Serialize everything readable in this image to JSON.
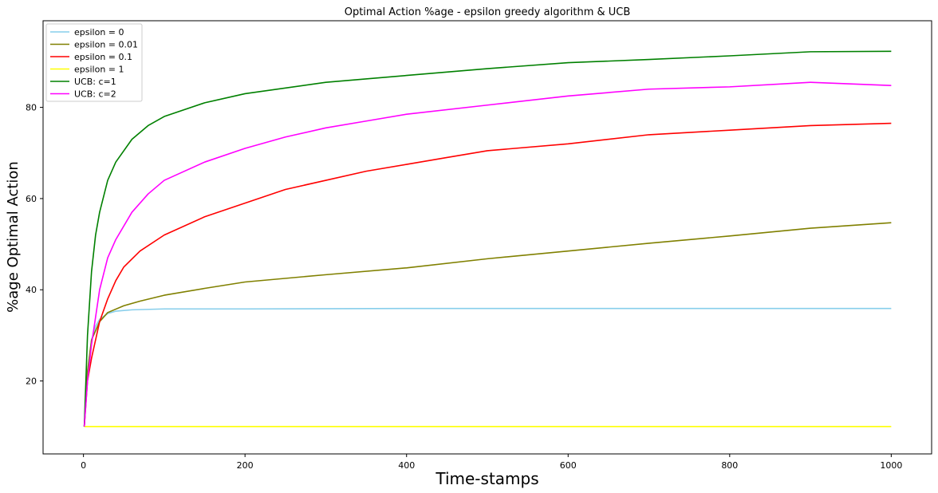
{
  "chart_data": {
    "type": "line",
    "title": "Optimal Action %age - epsilon greedy algorithm & UCB",
    "xlabel": "Time-stamps",
    "ylabel": "%age Optimal Action",
    "xlim": [
      -50,
      1050
    ],
    "ylim": [
      4,
      99
    ],
    "xticks": [
      0,
      200,
      400,
      600,
      800,
      1000
    ],
    "yticks": [
      20,
      40,
      60,
      80
    ],
    "grid": false,
    "legend_position": "top-left",
    "series": [
      {
        "name": "epsilon = 0",
        "color": "#87ceeb",
        "x": [
          1,
          5,
          10,
          15,
          20,
          30,
          40,
          60,
          100,
          200,
          400,
          600,
          800,
          1000
        ],
        "y": [
          10,
          22,
          29,
          32,
          33.5,
          34.8,
          35.3,
          35.6,
          35.8,
          35.8,
          35.9,
          35.9,
          35.9,
          35.9
        ]
      },
      {
        "name": "epsilon = 0.01",
        "color": "#808000",
        "x": [
          1,
          5,
          10,
          20,
          30,
          50,
          70,
          100,
          150,
          200,
          300,
          400,
          500,
          600,
          700,
          800,
          900,
          1000
        ],
        "y": [
          10,
          22,
          29,
          33,
          35,
          36.5,
          37.5,
          38.8,
          40.3,
          41.7,
          43.3,
          44.8,
          46.8,
          48.5,
          50.2,
          51.8,
          53.5,
          54.7
        ]
      },
      {
        "name": "epsilon = 0.1",
        "color": "#ff0000",
        "x": [
          1,
          5,
          10,
          20,
          30,
          40,
          50,
          70,
          100,
          150,
          200,
          250,
          300,
          350,
          400,
          450,
          500,
          600,
          700,
          800,
          900,
          1000
        ],
        "y": [
          10,
          20,
          25,
          33,
          38,
          42,
          45,
          48.5,
          52,
          56,
          59,
          62,
          64,
          66,
          67.5,
          69,
          70.5,
          72,
          74,
          75,
          76,
          76.5
        ]
      },
      {
        "name": "epsilon = 1",
        "color": "#ffff00",
        "x": [
          1,
          50,
          100,
          150,
          200,
          250,
          300,
          350,
          400,
          450,
          500,
          550,
          600,
          650,
          700,
          750,
          800,
          850,
          900,
          950,
          1000
        ],
        "y": [
          10,
          10,
          10,
          10,
          10,
          10,
          10,
          10,
          10,
          10,
          10,
          10,
          10,
          10,
          10,
          10,
          10,
          10,
          10,
          10,
          10
        ]
      },
      {
        "name": "UCB: c=1",
        "color": "#008000",
        "x": [
          1,
          5,
          10,
          15,
          20,
          30,
          40,
          60,
          80,
          100,
          150,
          200,
          300,
          400,
          500,
          600,
          700,
          800,
          900,
          1000
        ],
        "y": [
          10,
          30,
          44,
          52,
          57,
          64,
          68,
          73,
          76,
          78,
          81,
          83,
          85.5,
          87,
          88.5,
          89.8,
          90.5,
          91.3,
          92.2,
          92.3
        ]
      },
      {
        "name": "UCB: c=2",
        "color": "#ff00ff",
        "x": [
          1,
          5,
          10,
          20,
          30,
          40,
          60,
          80,
          100,
          150,
          200,
          250,
          300,
          350,
          400,
          500,
          600,
          700,
          800,
          900,
          1000
        ],
        "y": [
          10,
          20,
          28,
          40,
          47,
          51,
          57,
          61,
          64,
          68,
          71,
          73.5,
          75.5,
          77,
          78.5,
          80.5,
          82.5,
          84,
          84.5,
          85.5,
          84.8
        ]
      }
    ]
  }
}
